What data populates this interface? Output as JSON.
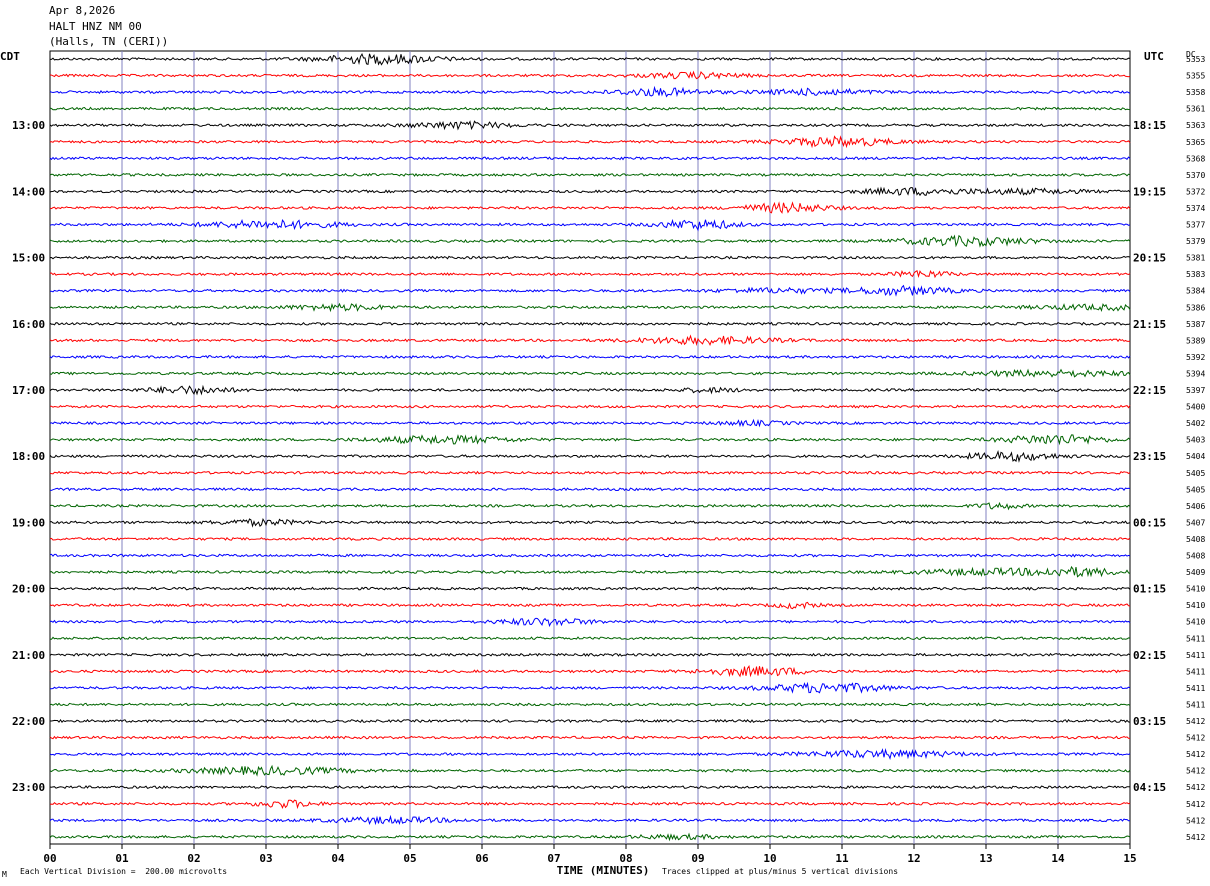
{
  "header": {
    "date": "Apr 8,2026",
    "station": "HALT HNZ NM 00",
    "location": "(Halls, TN (CERI))"
  },
  "left_zone_label": "CDT",
  "right_zone_label": "UTC",
  "dc_label": "DC",
  "footer": {
    "scale_note": "Each Vertical Division =  200.00 microvolts",
    "clip_note": "Traces clipped at plus/minus 5 vertical divisions",
    "corner_mark": "M"
  },
  "colors": {
    "trace_cycle": [
      "#000000",
      "#ff0000",
      "#0000ff",
      "#006400"
    ],
    "grid": "#8080c0"
  },
  "chart_data": {
    "type": "line",
    "xlabel": "TIME (MINUTES)",
    "xlim": [
      0,
      15
    ],
    "x_ticks": [
      "00",
      "01",
      "02",
      "03",
      "04",
      "05",
      "06",
      "07",
      "08",
      "09",
      "10",
      "11",
      "12",
      "13",
      "14",
      "15"
    ],
    "local_hour_labels": [
      "13:00",
      "14:00",
      "15:00",
      "16:00",
      "17:00",
      "18:00",
      "19:00",
      "20:00",
      "21:00",
      "22:00",
      "23:00"
    ],
    "utc_hour_labels": [
      "18:15",
      "19:15",
      "20:15",
      "21:15",
      "22:15",
      "23:15",
      "00:15",
      "01:15",
      "02:15",
      "03:15",
      "04:15"
    ],
    "dc_offsets": [
      "5353",
      "5355",
      "5358",
      "5361",
      "5363",
      "5365",
      "5368",
      "5370",
      "5372",
      "5374",
      "5377",
      "5379",
      "5381",
      "5383",
      "5384",
      "5386",
      "5387",
      "5389",
      "5392",
      "5394",
      "5397",
      "5400",
      "5402",
      "5403",
      "5404",
      "5405",
      "5405",
      "5406",
      "5407",
      "5408",
      "5408",
      "5409",
      "5410",
      "5410",
      "5410",
      "5411",
      "5411",
      "5411",
      "5411",
      "5411",
      "5412",
      "5412",
      "5412",
      "5412",
      "5412",
      "5412",
      "5412",
      "5412"
    ],
    "rows": 48
  }
}
